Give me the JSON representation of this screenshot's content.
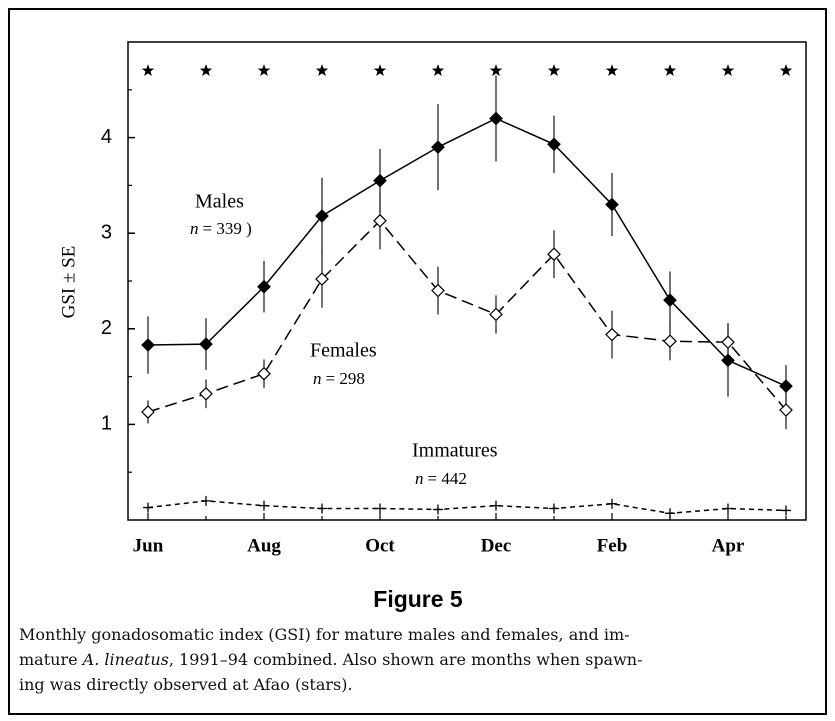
{
  "chart_data": {
    "type": "line",
    "y_label": "GSI ± SE",
    "figure_label": "Figure 5",
    "caption": [
      {
        "text": "Monthly gonadosomatic index (GSI) for mature males and females, and im-"
      },
      {
        "before": "mature ",
        "italic": "A. lineatus",
        "after": ", 1991–94 combined. Also shown are months when spawn-"
      },
      {
        "text": "ing was directly observed at Afao (stars)."
      }
    ],
    "categories": [
      "Jun",
      null,
      "Aug",
      null,
      "Oct",
      null,
      "Dec",
      null,
      "Feb",
      null,
      "Apr",
      null
    ],
    "ylim": [
      0,
      5
    ],
    "yticks": [
      1,
      2,
      3,
      4
    ],
    "yminor": [
      0.5,
      1.5,
      2.5,
      3.5,
      4.5
    ],
    "series": [
      {
        "label": "Males",
        "n": "n",
        "count": "= 339 )",
        "color": "#000000",
        "marker": "filled-diamond",
        "dash": "none",
        "values": [
          1.83,
          1.84,
          2.44,
          3.18,
          3.55,
          3.9,
          4.2,
          3.93,
          3.3,
          2.3,
          1.67,
          1.4
        ],
        "errors": [
          0.3,
          0.27,
          0.27,
          0.4,
          0.33,
          0.45,
          0.45,
          0.3,
          0.33,
          0.3,
          0.38,
          0.22
        ]
      },
      {
        "label": "Females",
        "n": "n",
        "count": "= 298",
        "color": "#000000",
        "marker": "open-diamond",
        "dash": "12 6",
        "values": [
          1.13,
          1.32,
          1.53,
          2.52,
          3.13,
          2.4,
          2.15,
          2.78,
          1.94,
          1.87,
          1.86,
          1.15
        ],
        "errors": [
          0.12,
          0.15,
          0.15,
          0.3,
          0.3,
          0.25,
          0.2,
          0.25,
          0.25,
          0.2,
          0.2,
          0.2
        ]
      },
      {
        "label": "Immatures",
        "n": "n",
        "count": "= 442",
        "color": "#000000",
        "marker": "plus",
        "dash": "5 4",
        "values": [
          0.13,
          0.2,
          0.15,
          0.12,
          0.12,
          0.11,
          0.15,
          0.12,
          0.17,
          0.07,
          0.12,
          0.1
        ]
      }
    ],
    "stars": {
      "values": [
        4.7,
        4.7,
        4.7,
        4.7,
        4.7,
        4.7,
        4.7,
        4.7,
        4.7,
        4.7,
        4.7,
        4.7
      ]
    }
  }
}
